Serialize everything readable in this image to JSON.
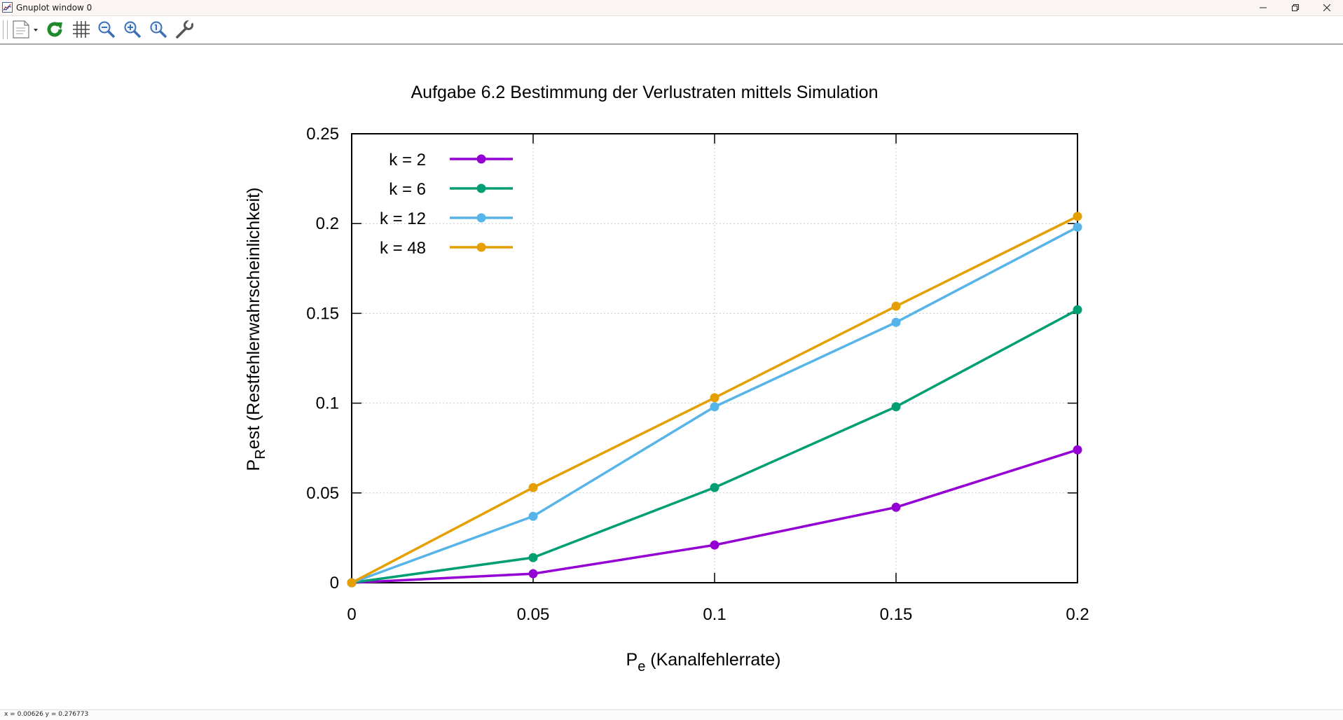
{
  "window": {
    "title": "Gnuplot window 0"
  },
  "toolbar": {
    "buttons": [
      {
        "name": "copy-print-menu-button",
        "icon": "document-icon"
      },
      {
        "name": "replot-button",
        "icon": "refresh-icon"
      },
      {
        "name": "grid-button",
        "icon": "grid-icon"
      },
      {
        "name": "zoom-previous-button",
        "icon": "zoom-out-icon"
      },
      {
        "name": "zoom-next-button",
        "icon": "zoom-in-icon"
      },
      {
        "name": "unzoom-button",
        "icon": "zoom-reset-icon"
      },
      {
        "name": "options-button",
        "icon": "wrench-icon"
      }
    ]
  },
  "status": {
    "coords": "x =   0.00626 y =  0.276773"
  },
  "chart_data": {
    "type": "line",
    "title": "Aufgabe 6.2 Bestimmung der Verlustraten mittels Simulation",
    "xlabel": {
      "main": "P",
      "sub": "e",
      "rest": " (Kanalfehlerrate)"
    },
    "ylabel": {
      "main": "P",
      "sub": "R",
      "rest": "est (Restfehlerwahrscheinlichkeit)"
    },
    "xlim": [
      0,
      0.2
    ],
    "ylim": [
      0,
      0.25
    ],
    "xticks": [
      "0",
      "0.05",
      "0.1",
      "0.15",
      "0.2"
    ],
    "yticks": [
      "0",
      "0.05",
      "0.1",
      "0.15",
      "0.2",
      "0.25"
    ],
    "grid": true,
    "legend_position": "top-left",
    "x": [
      0,
      0.05,
      0.1,
      0.15,
      0.2
    ],
    "series": [
      {
        "name": "k = 2",
        "color": "#9400d3",
        "values": [
          0,
          0.005,
          0.021,
          0.042,
          0.074
        ]
      },
      {
        "name": "k = 6",
        "color": "#009e73",
        "values": [
          0,
          0.014,
          0.053,
          0.098,
          0.152
        ]
      },
      {
        "name": "k = 12",
        "color": "#56b4e9",
        "values": [
          0,
          0.037,
          0.098,
          0.145,
          0.198
        ]
      },
      {
        "name": "k = 48",
        "color": "#e69f00",
        "values": [
          0,
          0.053,
          0.103,
          0.154,
          0.204
        ]
      }
    ]
  }
}
